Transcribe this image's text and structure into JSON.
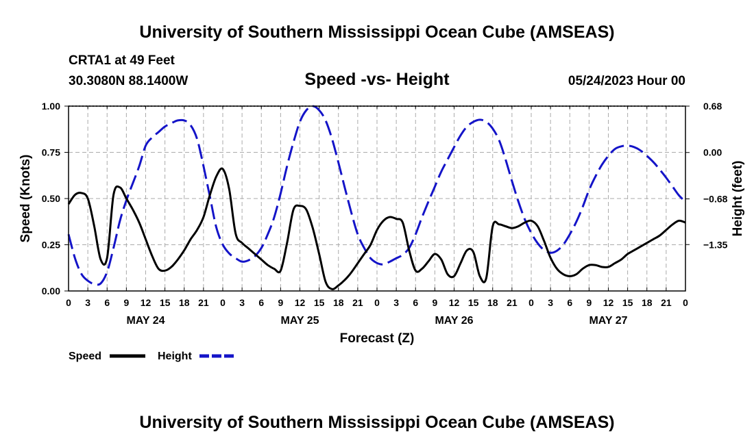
{
  "header": {
    "title": "University of Southern Mississippi Ocean Cube (AMSEAS)",
    "station": "CRTA1 at 49 Feet",
    "coords": "30.3080N  88.1400W",
    "date": "05/24/2023 Hour 00",
    "footer_title": "University of Southern Mississippi Ocean Cube (AMSEAS)"
  },
  "legend": {
    "speed_label": "Speed",
    "height_label": "Height"
  },
  "colors": {
    "speed": "#000000",
    "height": "#1414c8",
    "grid": "#aaaaaa"
  },
  "chart_data": {
    "type": "line",
    "title": "Speed -vs- Height",
    "xlabel": "Forecast (Z)",
    "ylabel": "Speed (Knots)",
    "y2label": "Height (feet)",
    "x_unit": "hours from 05/24/2023 00Z",
    "xlim": [
      0,
      96
    ],
    "ylim": [
      0,
      1
    ],
    "y2lim": [
      -2.03,
      0.68
    ],
    "x_ticks": [
      0,
      3,
      6,
      9,
      12,
      15,
      18,
      21,
      24,
      27,
      30,
      33,
      36,
      39,
      42,
      45,
      48,
      51,
      54,
      57,
      60,
      63,
      66,
      69,
      72,
      75,
      78,
      81,
      84,
      87,
      90,
      93,
      96
    ],
    "x_tick_labels": [
      "0",
      "3",
      "6",
      "9",
      "12",
      "15",
      "18",
      "21",
      "0",
      "3",
      "6",
      "9",
      "12",
      "15",
      "18",
      "21",
      "0",
      "3",
      "6",
      "9",
      "12",
      "15",
      "18",
      "21",
      "0",
      "3",
      "6",
      "9",
      "12",
      "15",
      "18",
      "21",
      "0"
    ],
    "day_labels": [
      {
        "x": 12,
        "label": "MAY 24"
      },
      {
        "x": 36,
        "label": "MAY 25"
      },
      {
        "x": 60,
        "label": "MAY 26"
      },
      {
        "x": 84,
        "label": "MAY 27"
      }
    ],
    "y_ticks": [
      0,
      0.25,
      0.5,
      0.75,
      1.0
    ],
    "y_tick_labels": [
      "0.00",
      "0.25",
      "0.50",
      "0.75",
      "1.00"
    ],
    "y2_ticks": [
      -1.35,
      -0.68,
      0.0,
      0.68
    ],
    "y2_tick_labels": [
      "−1.35",
      "−0.68",
      "0.00",
      "0.68"
    ],
    "grid": true,
    "series": [
      {
        "name": "Speed",
        "axis": "left",
        "style": "solid",
        "x": [
          0,
          1,
          2,
          3,
          4,
          5,
          6,
          7,
          8,
          9,
          10,
          11,
          12,
          13,
          14,
          15,
          16,
          17,
          18,
          19,
          20,
          21,
          22,
          23,
          24,
          25,
          26,
          27,
          28,
          29,
          30,
          31,
          32,
          33,
          34,
          35,
          36,
          37,
          38,
          39,
          40,
          41,
          42,
          43,
          44,
          45,
          46,
          47,
          48,
          49,
          50,
          51,
          52,
          53,
          54,
          55,
          56,
          57,
          58,
          59,
          60,
          61,
          62,
          63,
          64,
          65,
          66,
          67,
          68,
          69,
          70,
          71,
          72,
          73,
          74,
          75,
          76,
          77,
          78,
          79,
          80,
          81,
          82,
          83,
          84,
          85,
          86,
          87,
          88,
          89,
          90,
          91,
          92,
          93,
          94,
          95,
          96
        ],
        "values": [
          0.47,
          0.52,
          0.53,
          0.5,
          0.35,
          0.17,
          0.18,
          0.52,
          0.56,
          0.5,
          0.44,
          0.37,
          0.28,
          0.19,
          0.12,
          0.11,
          0.13,
          0.17,
          0.22,
          0.28,
          0.33,
          0.4,
          0.52,
          0.62,
          0.66,
          0.55,
          0.31,
          0.26,
          0.23,
          0.2,
          0.17,
          0.14,
          0.12,
          0.11,
          0.26,
          0.44,
          0.46,
          0.44,
          0.34,
          0.2,
          0.05,
          0.01,
          0.03,
          0.06,
          0.1,
          0.15,
          0.2,
          0.25,
          0.33,
          0.38,
          0.4,
          0.39,
          0.37,
          0.22,
          0.11,
          0.12,
          0.16,
          0.2,
          0.17,
          0.09,
          0.08,
          0.15,
          0.22,
          0.21,
          0.08,
          0.07,
          0.35,
          0.36,
          0.35,
          0.34,
          0.35,
          0.37,
          0.38,
          0.35,
          0.27,
          0.18,
          0.12,
          0.09,
          0.08,
          0.09,
          0.12,
          0.14,
          0.14,
          0.13,
          0.13,
          0.15,
          0.17,
          0.2,
          0.22,
          0.24,
          0.26,
          0.28,
          0.3,
          0.33,
          0.36,
          0.38,
          0.37
        ]
      },
      {
        "name": "Height",
        "axis": "right",
        "style": "dashed",
        "x": [
          0,
          1,
          2,
          3,
          4,
          5,
          6,
          7,
          8,
          9,
          10,
          11,
          12,
          13,
          14,
          15,
          16,
          17,
          18,
          19,
          20,
          21,
          22,
          23,
          24,
          25,
          26,
          27,
          28,
          29,
          30,
          31,
          32,
          33,
          34,
          35,
          36,
          37,
          38,
          39,
          40,
          41,
          42,
          43,
          44,
          45,
          46,
          47,
          48,
          49,
          50,
          51,
          52,
          53,
          54,
          55,
          56,
          57,
          58,
          59,
          60,
          61,
          62,
          63,
          64,
          65,
          66,
          67,
          68,
          69,
          70,
          71,
          72,
          73,
          74,
          75,
          76,
          77,
          78,
          79,
          80,
          81,
          82,
          83,
          84,
          85,
          86,
          87,
          88,
          89,
          90,
          91,
          92,
          93,
          94,
          95,
          96
        ],
        "values": [
          -1.2,
          -1.55,
          -1.78,
          -1.88,
          -1.93,
          -1.92,
          -1.75,
          -1.4,
          -1.0,
          -0.7,
          -0.45,
          -0.2,
          0.1,
          0.22,
          0.3,
          0.38,
          0.43,
          0.47,
          0.47,
          0.4,
          0.2,
          -0.2,
          -0.65,
          -1.1,
          -1.35,
          -1.48,
          -1.55,
          -1.6,
          -1.58,
          -1.52,
          -1.4,
          -1.2,
          -0.95,
          -0.6,
          -0.2,
          0.15,
          0.45,
          0.62,
          0.68,
          0.62,
          0.47,
          0.2,
          -0.15,
          -0.52,
          -0.88,
          -1.2,
          -1.4,
          -1.55,
          -1.62,
          -1.64,
          -1.6,
          -1.55,
          -1.5,
          -1.4,
          -1.2,
          -0.95,
          -0.72,
          -0.5,
          -0.28,
          -0.1,
          0.08,
          0.25,
          0.38,
          0.45,
          0.48,
          0.45,
          0.35,
          0.18,
          -0.1,
          -0.42,
          -0.72,
          -0.98,
          -1.18,
          -1.33,
          -1.43,
          -1.47,
          -1.44,
          -1.35,
          -1.2,
          -1.02,
          -0.8,
          -0.55,
          -0.35,
          -0.18,
          -0.05,
          0.05,
          0.09,
          0.1,
          0.08,
          0.03,
          -0.05,
          -0.14,
          -0.25,
          -0.37,
          -0.5,
          -0.63,
          -0.72
        ]
      }
    ]
  }
}
